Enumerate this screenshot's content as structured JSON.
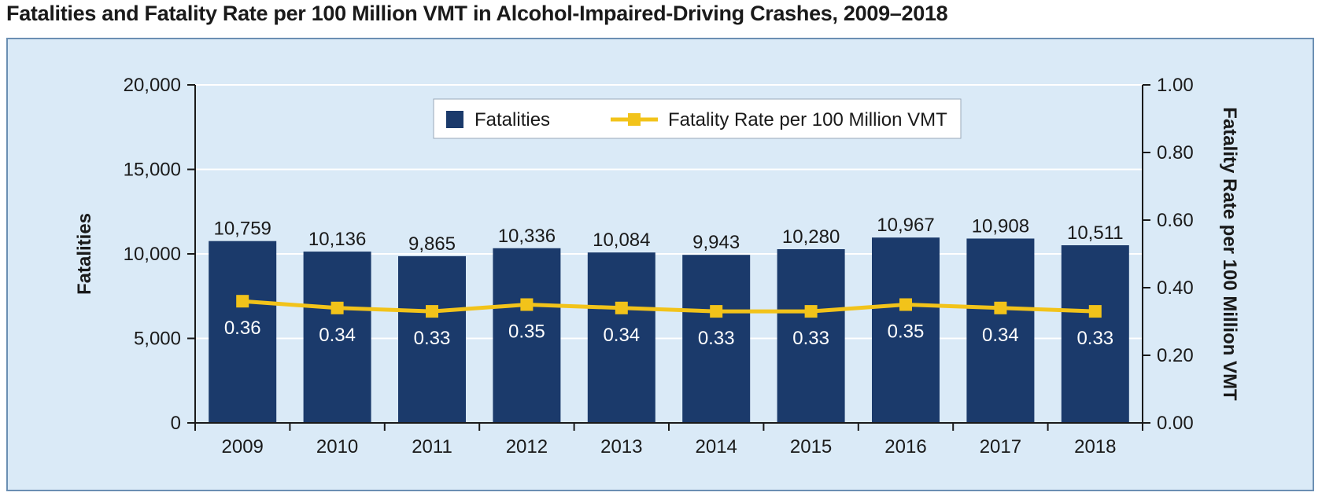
{
  "title": "Fatalities and Fatality Rate per 100 Million VMT in Alcohol-Impaired-Driving Crashes, 2009–2018",
  "colors": {
    "panel_background": "#daeaf7",
    "plot_background": "#daeaf7",
    "bar": "#1b3a6b",
    "line": "#f2c31a",
    "gridline": "#ffffff"
  },
  "chart_data": {
    "type": "bar",
    "title": "Fatalities and Fatality Rate per 100 Million VMT in Alcohol-Impaired-Driving Crashes, 2009–2018",
    "categories": [
      "2009",
      "2010",
      "2011",
      "2012",
      "2013",
      "2014",
      "2015",
      "2016",
      "2017",
      "2018"
    ],
    "series": [
      {
        "name": "Fatalities",
        "type": "bar",
        "axis": "left",
        "values": [
          10759,
          10136,
          9865,
          10336,
          10084,
          9943,
          10280,
          10967,
          10908,
          10511
        ],
        "labels": [
          "10,759",
          "10,136",
          "9,865",
          "10,336",
          "10,084",
          "9,943",
          "10,280",
          "10,967",
          "10,908",
          "10,511"
        ]
      },
      {
        "name": "Fatality Rate per 100 Million VMT",
        "type": "line",
        "axis": "right",
        "values": [
          0.36,
          0.34,
          0.33,
          0.35,
          0.34,
          0.33,
          0.33,
          0.35,
          0.34,
          0.33
        ],
        "labels": [
          "0.36",
          "0.34",
          "0.33",
          "0.35",
          "0.34",
          "0.33",
          "0.33",
          "0.35",
          "0.34",
          "0.33"
        ]
      }
    ],
    "ylabel": "Fatalities",
    "y2label": "Fatality Rate per 100 Million VMT",
    "ylim": [
      0,
      20000
    ],
    "y2lim": [
      0,
      1.0
    ],
    "yticks": [
      "0",
      "5,000",
      "10,000",
      "15,000",
      "20,000"
    ],
    "y2ticks": [
      "0.00",
      "0.20",
      "0.40",
      "0.60",
      "0.80",
      "1.00"
    ],
    "grid": true,
    "legend_position": "top-center"
  }
}
